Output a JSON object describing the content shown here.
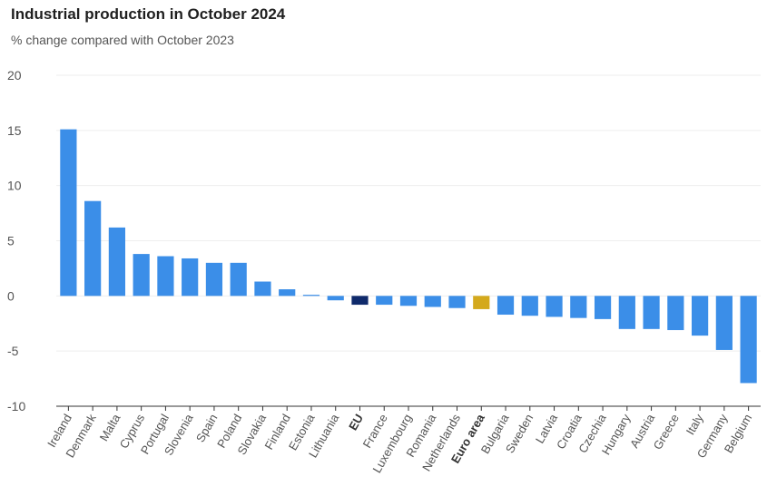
{
  "chart_data": {
    "type": "bar",
    "title": "Industrial production in October 2024",
    "subtitle": "% change compared with October 2023",
    "xlabel": "",
    "ylabel": "",
    "ylim": [
      -10,
      20
    ],
    "yticks": [
      20,
      15,
      10,
      5,
      0,
      -5,
      -10
    ],
    "grid": true,
    "legend": "none",
    "categories": [
      "Ireland",
      "Denmark",
      "Malta",
      "Cyprus",
      "Portugal",
      "Slovenia",
      "Spain",
      "Poland",
      "Slovakia",
      "Finland",
      "Estonia",
      "Lithuania",
      "EU",
      "France",
      "Luxembourg",
      "Romania",
      "Netherlands",
      "Euro area",
      "Bulgaria",
      "Sweden",
      "Latvia",
      "Croatia",
      "Czechia",
      "Hungary",
      "Austria",
      "Greece",
      "Italy",
      "Germany",
      "Belgium"
    ],
    "values": [
      15.1,
      8.6,
      6.2,
      3.8,
      3.6,
      3.4,
      3.0,
      3.0,
      1.3,
      0.6,
      0.1,
      -0.4,
      -0.8,
      -0.8,
      -0.9,
      -1.0,
      -1.1,
      -1.2,
      -1.7,
      -1.8,
      -1.9,
      -2.0,
      -2.1,
      -3.0,
      -3.0,
      -3.1,
      -3.6,
      -4.9,
      -7.9
    ],
    "bold_categories": [
      "EU",
      "Euro area"
    ],
    "colors": {
      "default": "#3b8ee8",
      "EU": "#0f2a6b",
      "Euro area": "#d4a91c",
      "grid": "#eeeeee",
      "axis": "#333333"
    }
  }
}
